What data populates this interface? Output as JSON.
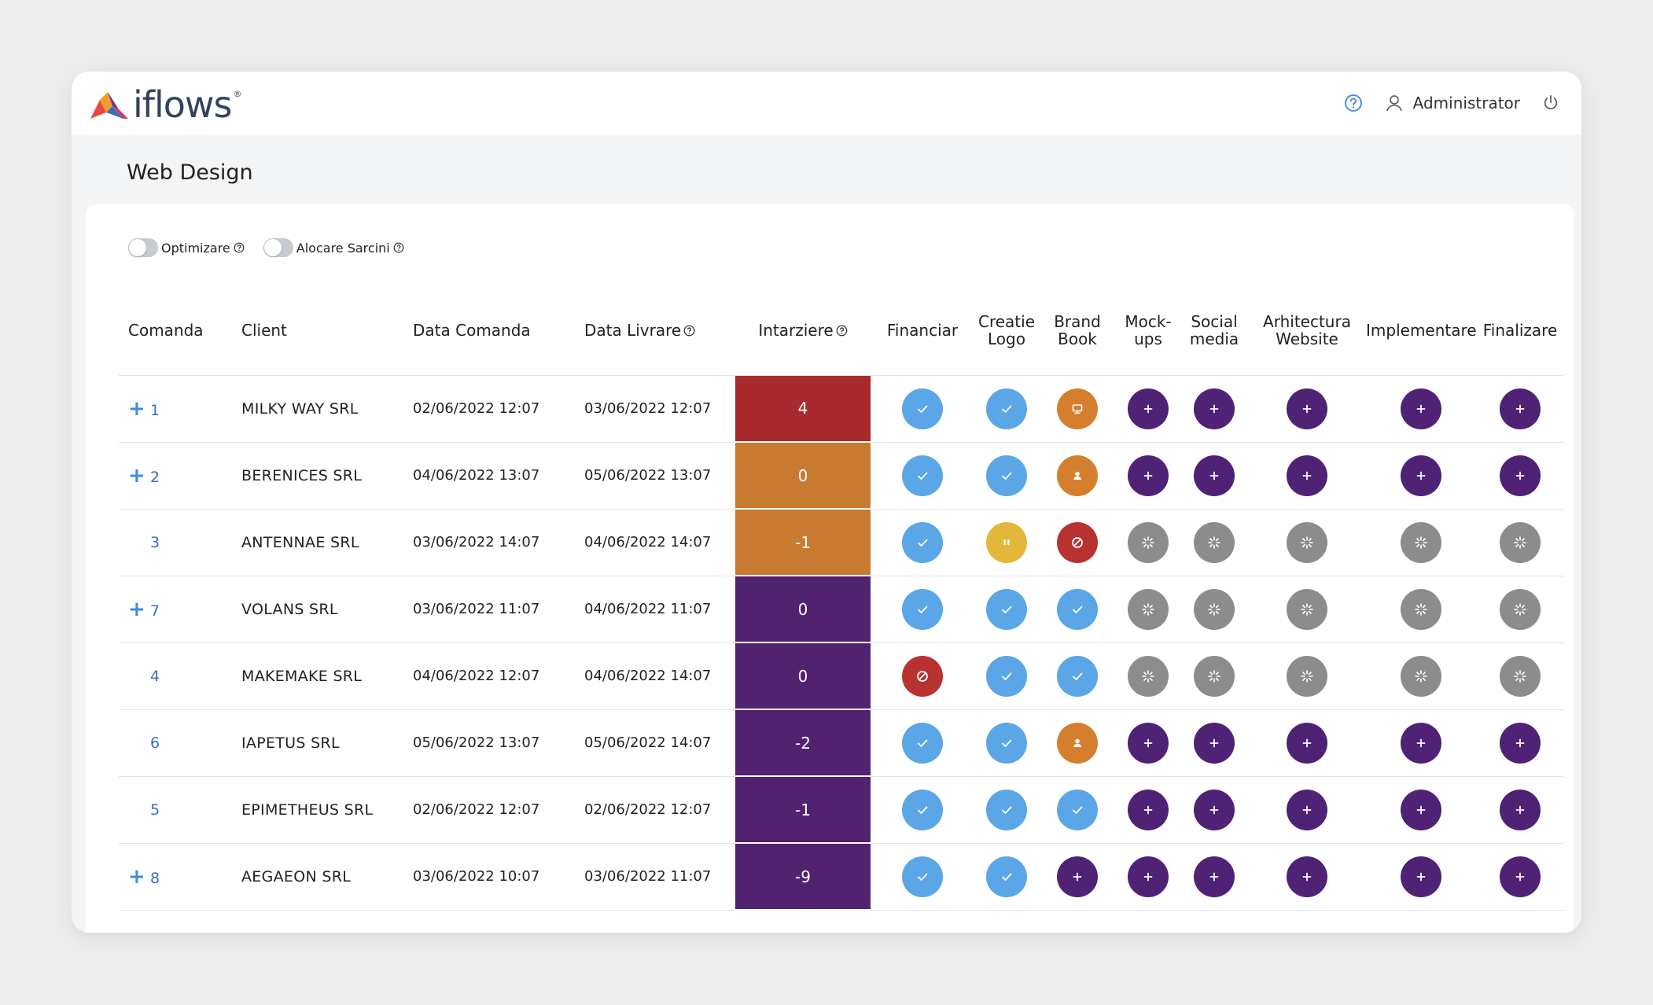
{
  "app": {
    "logo_text": "iflows",
    "logo_reg": "®",
    "user_name": "Administrator",
    "page_title": "Web Design"
  },
  "colors": {
    "check": "#5aa6e6",
    "pause": "#e2b73a",
    "blocked": "#b83232",
    "pending": "#8c8c8c",
    "add": "#4f2275",
    "person": "#d57f2e",
    "delay_red": "#a8292e",
    "delay_orange": "#c77a30",
    "delay_purple": "#502270"
  },
  "toggles": [
    {
      "label": "Optimizare",
      "enabled": false
    },
    {
      "label": "Alocare Sarcini",
      "enabled": false
    }
  ],
  "table": {
    "headers": {
      "comanda": "Comanda",
      "client": "Client",
      "data_comanda": "Data Comanda",
      "data_livrare": "Data Livrare",
      "intarziere": "Intarziere",
      "financiar": "Financiar",
      "creatie_logo_1": "Creatie",
      "creatie_logo_2": "Logo",
      "brand_book_1": "Brand",
      "brand_book_2": "Book",
      "mockups_1": "Mock-",
      "mockups_2": "ups",
      "social_1": "Social",
      "social_2": "media",
      "arhitectura_1": "Arhitectura",
      "arhitectura_2": "Website",
      "implementare": "Implementare",
      "finalizare": "Finalizare"
    },
    "rows": [
      {
        "expand": "+",
        "id": "1",
        "client": "MILKY WAY SRL",
        "data_comanda": "02/06/2022  12:07",
        "data_livrare": "03/06/2022 12:07",
        "intarziere": "4",
        "delay_color": "red",
        "stages": [
          "check",
          "check",
          "monitor",
          "add",
          "add",
          "add",
          "add",
          "add"
        ]
      },
      {
        "expand": "+",
        "id": "2",
        "client": "BERENICES SRL",
        "data_comanda": "04/06/2022 13:07",
        "data_livrare": "05/06/2022 13:07",
        "intarziere": "0",
        "delay_color": "orange",
        "stages": [
          "check",
          "check",
          "person",
          "add",
          "add",
          "add",
          "add",
          "add"
        ]
      },
      {
        "expand": "",
        "id": "3",
        "client": "ANTENNAE SRL",
        "data_comanda": "03/06/2022 14:07",
        "data_livrare": "04/06/2022 14:07",
        "intarziere": "-1",
        "delay_color": "orange",
        "stages": [
          "check",
          "pause",
          "blocked",
          "pending",
          "pending",
          "pending",
          "pending",
          "pending"
        ]
      },
      {
        "expand": "+",
        "id": "7",
        "client": "VOLANS SRL",
        "data_comanda": "03/06/2022 11:07",
        "data_livrare": "04/06/2022 11:07",
        "intarziere": "0",
        "delay_color": "purple",
        "stages": [
          "check",
          "check",
          "check",
          "pending",
          "pending",
          "pending",
          "pending",
          "pending"
        ]
      },
      {
        "expand": "",
        "id": "4",
        "client": "MAKEMAKE SRL",
        "data_comanda": "04/06/2022 12:07",
        "data_livrare": "04/06/2022 14:07",
        "intarziere": "0",
        "delay_color": "purple",
        "stages": [
          "blocked",
          "check",
          "check",
          "pending",
          "pending",
          "pending",
          "pending",
          "pending"
        ]
      },
      {
        "expand": "",
        "id": "6",
        "client": "IAPETUS SRL",
        "data_comanda": "05/06/2022 13:07",
        "data_livrare": "05/06/2022 14:07",
        "intarziere": "-2",
        "delay_color": "purple",
        "stages": [
          "check",
          "check",
          "person",
          "add",
          "add",
          "add",
          "add",
          "add"
        ]
      },
      {
        "expand": "",
        "id": "5",
        "client": "EPIMETHEUS SRL",
        "data_comanda": "02/06/2022 12:07",
        "data_livrare": "02/06/2022 12:07",
        "intarziere": "-1",
        "delay_color": "purple",
        "stages": [
          "check",
          "check",
          "check",
          "add",
          "add",
          "add",
          "add",
          "add"
        ]
      },
      {
        "expand": "+",
        "id": "8",
        "client": "AEGAEON SRL",
        "data_comanda": "03/06/2022 10:07",
        "data_livrare": "03/06/2022 11:07",
        "intarziere": "-9",
        "delay_color": "purple",
        "stages": [
          "check",
          "check",
          "add",
          "add",
          "add",
          "add",
          "add",
          "add"
        ]
      }
    ]
  }
}
